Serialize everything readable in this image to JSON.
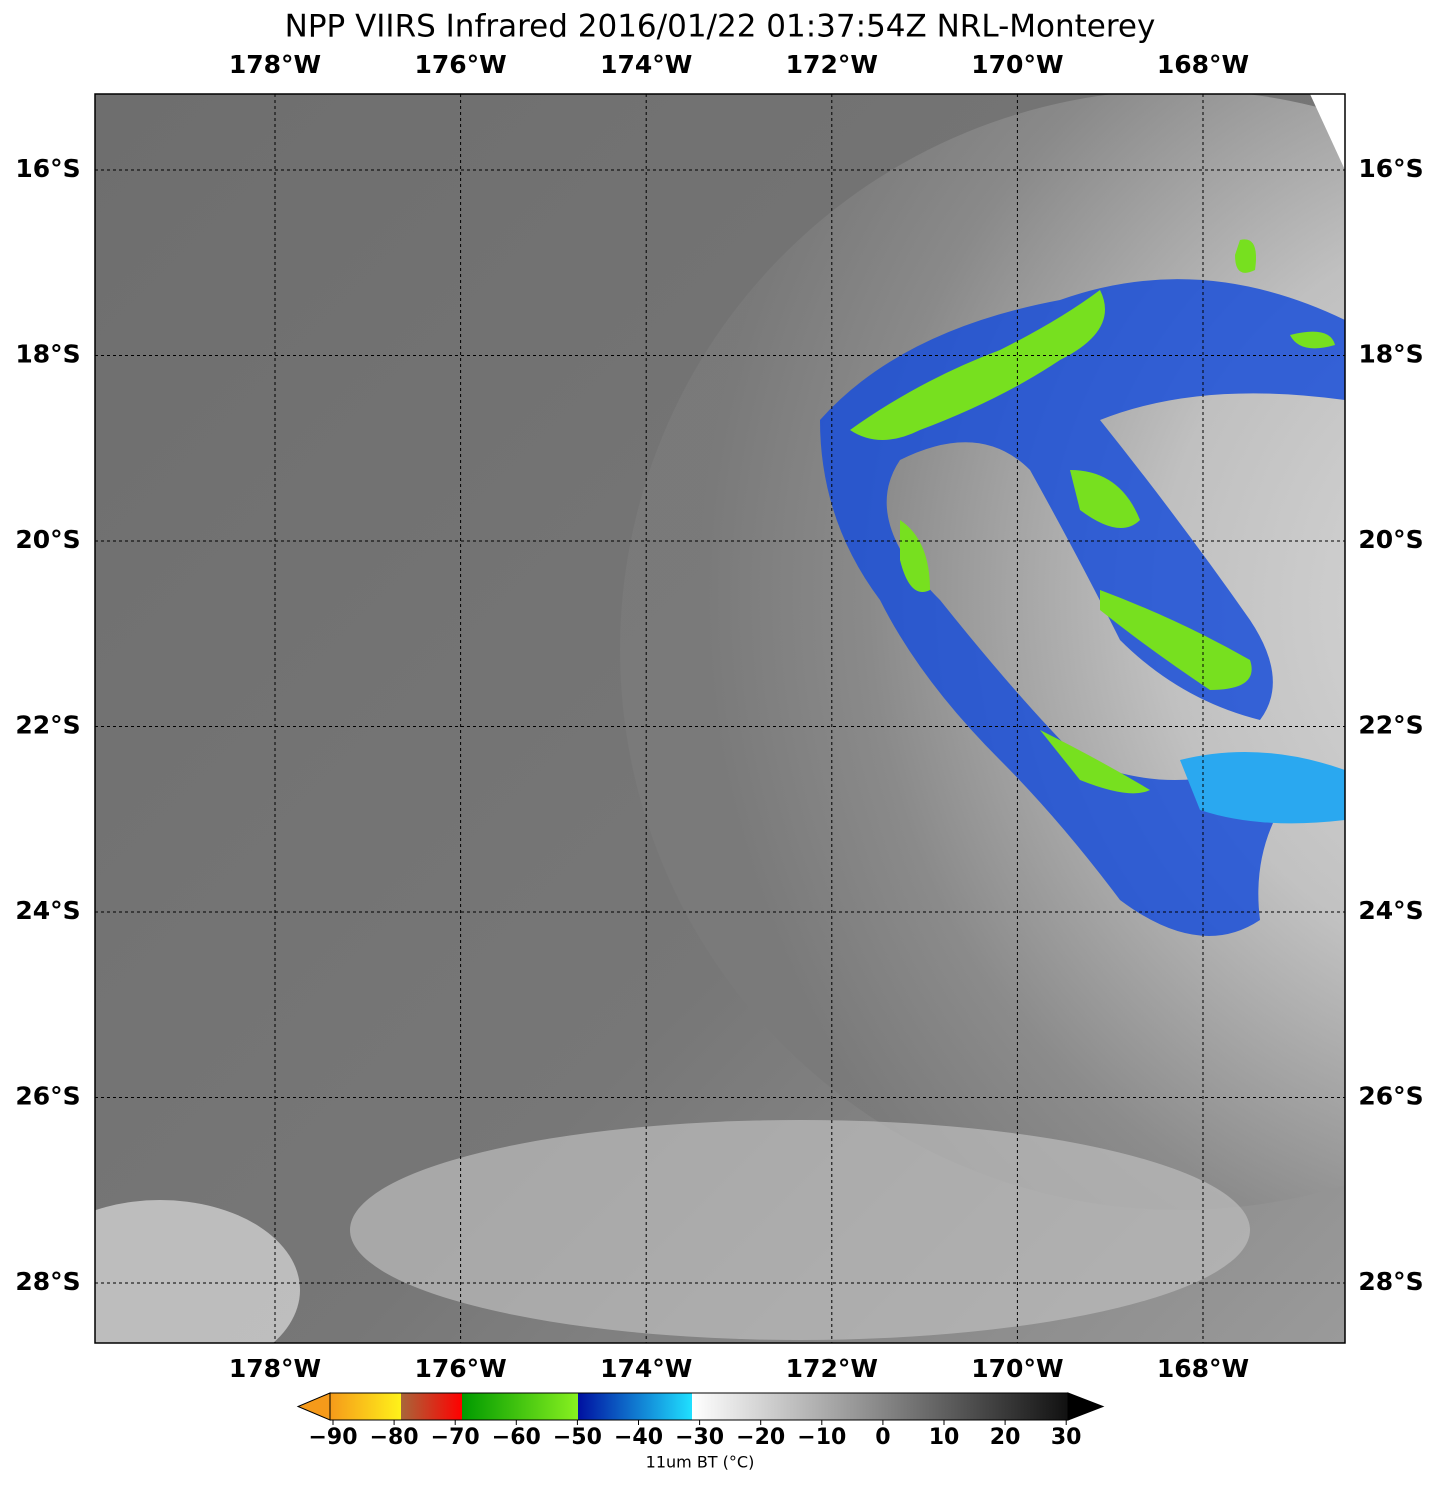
{
  "header": {
    "title": "NPP VIIRS Infrared 2016/01/22 01:37:54Z NRL-Monterey"
  },
  "map": {
    "longitude_labels": [
      "178°W",
      "176°W",
      "174°W",
      "172°W",
      "170°W",
      "168°W"
    ],
    "latitude_labels": [
      "16°S",
      "18°S",
      "20°S",
      "22°S",
      "24°S",
      "26°S",
      "28°S"
    ]
  },
  "colorbar": {
    "tick_labels": [
      "−90",
      "−80",
      "−70",
      "−60",
      "−50",
      "−40",
      "−30",
      "−20",
      "−10",
      "0",
      "10",
      "20",
      "30"
    ],
    "label": "11um BT (°C)"
  }
}
